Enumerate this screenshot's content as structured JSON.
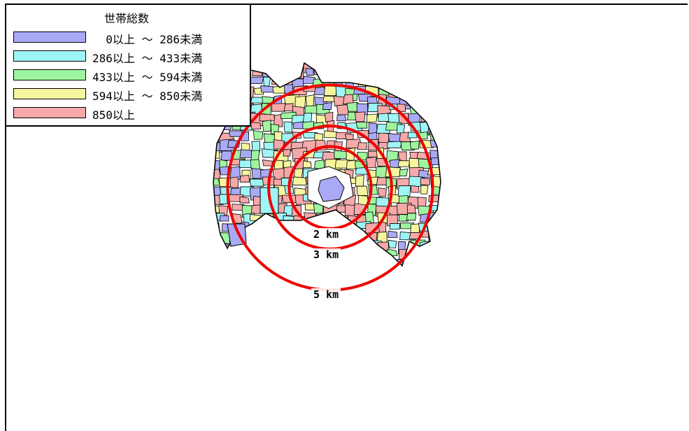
{
  "legend": {
    "title": "世帯総数",
    "items": [
      {
        "label": "  0以上 ～ 286未満",
        "color": "#a9a9f5"
      },
      {
        "label": "286以上 ～ 433未満",
        "color": "#9ff5f5"
      },
      {
        "label": "433以上 ～ 594未満",
        "color": "#9ff59f"
      },
      {
        "label": "594以上 ～ 850未満",
        "color": "#f5f59f"
      },
      {
        "label": "850以上",
        "color": "#f5a9a9"
      }
    ]
  },
  "rings": [
    {
      "label": "2 km",
      "km": 2
    },
    {
      "label": "3 km",
      "km": 3
    },
    {
      "label": "5 km",
      "km": 5
    }
  ],
  "ring_color": "#ee0000"
}
